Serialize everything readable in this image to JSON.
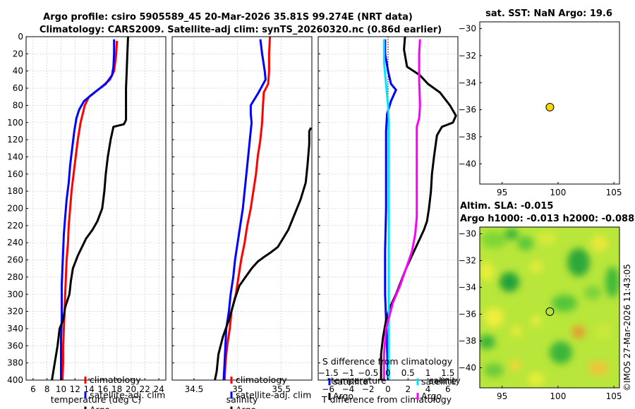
{
  "figure": {
    "title_line1": "Argo profile: csiro 5905589_45 20-Mar-2026 35.81S 99.274E (NRT data)",
    "title_line2": "Climatology: CARS2009. Satellite-adj clim: synTS_20260320.nc (0.86d earlier)",
    "timestamp": "©IMOS 27-Mar-2026 11:43:05"
  },
  "colors": {
    "climatology": "#ff0000",
    "satellite": "#0000ff",
    "argo": "#000000",
    "sat_t": "#00e5ff",
    "sal_m": "#ff00ff",
    "marker": "#ffd700"
  },
  "chart_data": [
    {
      "id": "temperature",
      "type": "line",
      "xlabel": "temperature (deg C)",
      "ylabel": "",
      "xlim": [
        5,
        25
      ],
      "ylim": [
        400,
        0
      ],
      "xticks": [
        6,
        8,
        10,
        12,
        14,
        16,
        18,
        20,
        22,
        24
      ],
      "yticks": [
        0,
        20,
        40,
        60,
        80,
        100,
        120,
        140,
        160,
        180,
        200,
        220,
        240,
        260,
        280,
        300,
        320,
        340,
        360,
        380,
        400
      ],
      "legend": [
        "climatology",
        "satellite-adj. clim",
        "Argo"
      ],
      "series": [
        {
          "name": "climatology",
          "color": "#ff0000",
          "points": [
            [
              18.0,
              5
            ],
            [
              17.9,
              20
            ],
            [
              17.6,
              40
            ],
            [
              17.0,
              50
            ],
            [
              15.6,
              60
            ],
            [
              14.0,
              70
            ],
            [
              13.4,
              80
            ],
            [
              13.1,
              90
            ],
            [
              12.8,
              100
            ],
            [
              12.4,
              120
            ],
            [
              12.1,
              140
            ],
            [
              11.8,
              160
            ],
            [
              11.5,
              180
            ],
            [
              11.3,
              200
            ],
            [
              11.1,
              220
            ],
            [
              11.0,
              240
            ],
            [
              10.8,
              260
            ],
            [
              10.7,
              280
            ],
            [
              10.6,
              300
            ],
            [
              10.5,
              320
            ],
            [
              10.4,
              340
            ],
            [
              10.3,
              360
            ],
            [
              10.3,
              380
            ],
            [
              10.2,
              400
            ]
          ]
        },
        {
          "name": "satellite-adj. clim",
          "color": "#0000ff",
          "points": [
            [
              17.6,
              3
            ],
            [
              17.6,
              20
            ],
            [
              17.5,
              35
            ],
            [
              17.3,
              45
            ],
            [
              16.4,
              55
            ],
            [
              14.8,
              65
            ],
            [
              13.3,
              75
            ],
            [
              12.6,
              85
            ],
            [
              12.2,
              95
            ],
            [
              11.9,
              110
            ],
            [
              11.6,
              130
            ],
            [
              11.3,
              150
            ],
            [
              11.1,
              170
            ],
            [
              10.8,
              190
            ],
            [
              10.6,
              210
            ],
            [
              10.4,
              230
            ],
            [
              10.3,
              250
            ],
            [
              10.2,
              270
            ],
            [
              10.1,
              290
            ],
            [
              10.1,
              310
            ],
            [
              10.1,
              330
            ],
            [
              10.0,
              350
            ],
            [
              10.0,
              370
            ],
            [
              10.0,
              390
            ],
            [
              10.0,
              400
            ]
          ]
        },
        {
          "name": "Argo",
          "color": "#000000",
          "points": [
            [
              19.6,
              0
            ],
            [
              19.5,
              20
            ],
            [
              19.4,
              40
            ],
            [
              19.3,
              60
            ],
            [
              19.3,
              80
            ],
            [
              19.3,
              97
            ],
            [
              19.0,
              102
            ],
            [
              17.5,
              105
            ],
            [
              17.1,
              120
            ],
            [
              16.7,
              140
            ],
            [
              16.4,
              160
            ],
            [
              16.2,
              180
            ],
            [
              15.9,
              200
            ],
            [
              15.2,
              215
            ],
            [
              14.5,
              225
            ],
            [
              13.6,
              235
            ],
            [
              13.0,
              245
            ],
            [
              12.4,
              255
            ],
            [
              11.7,
              270
            ],
            [
              11.4,
              285
            ],
            [
              11.2,
              300
            ],
            [
              10.6,
              315
            ],
            [
              10.3,
              330
            ],
            [
              9.8,
              340
            ],
            [
              9.5,
              360
            ],
            [
              9.2,
              375
            ],
            [
              8.9,
              390
            ],
            [
              8.7,
              400
            ]
          ]
        }
      ]
    },
    {
      "id": "salinity",
      "type": "line",
      "xlabel": "salinity",
      "ylabel": "",
      "xlim": [
        34.25,
        35.85
      ],
      "ylim": [
        400,
        0
      ],
      "xticks": [
        34.5,
        35,
        35.5
      ],
      "legend": [
        "climatology",
        "satellite-adj. clim",
        "Argo"
      ],
      "series": [
        {
          "name": "climatology",
          "color": "#ff0000",
          "points": [
            [
              35.37,
              0
            ],
            [
              35.36,
              20
            ],
            [
              35.36,
              40
            ],
            [
              35.35,
              55
            ],
            [
              35.3,
              65
            ],
            [
              35.29,
              80
            ],
            [
              35.28,
              100
            ],
            [
              35.26,
              120
            ],
            [
              35.23,
              140
            ],
            [
              35.21,
              160
            ],
            [
              35.18,
              180
            ],
            [
              35.15,
              200
            ],
            [
              35.11,
              220
            ],
            [
              35.08,
              240
            ],
            [
              35.04,
              260
            ],
            [
              35.01,
              280
            ],
            [
              34.98,
              300
            ],
            [
              34.93,
              320
            ],
            [
              34.91,
              340
            ],
            [
              34.88,
              360
            ],
            [
              34.86,
              380
            ],
            [
              34.85,
              400
            ]
          ]
        },
        {
          "name": "satellite-adj. clim",
          "color": "#0000ff",
          "points": [
            [
              35.26,
              3
            ],
            [
              35.28,
              20
            ],
            [
              35.31,
              40
            ],
            [
              35.32,
              50
            ],
            [
              35.24,
              65
            ],
            [
              35.15,
              80
            ],
            [
              35.15,
              90
            ],
            [
              35.16,
              100
            ],
            [
              35.14,
              120
            ],
            [
              35.12,
              140
            ],
            [
              35.1,
              160
            ],
            [
              35.08,
              180
            ],
            [
              35.06,
              200
            ],
            [
              35.03,
              220
            ],
            [
              35.0,
              240
            ],
            [
              34.97,
              260
            ],
            [
              34.95,
              280
            ],
            [
              34.92,
              300
            ],
            [
              34.9,
              320
            ],
            [
              34.87,
              340
            ],
            [
              34.86,
              360
            ],
            [
              34.85,
              380
            ],
            [
              34.84,
              400
            ]
          ]
        },
        {
          "name": "Argo",
          "color": "#000000",
          "points": [
            [
              35.84,
              106
            ],
            [
              35.82,
              110
            ],
            [
              35.82,
              125
            ],
            [
              35.8,
              150
            ],
            [
              35.78,
              170
            ],
            [
              35.72,
              190
            ],
            [
              35.64,
              210
            ],
            [
              35.58,
              225
            ],
            [
              35.52,
              235
            ],
            [
              35.46,
              245
            ],
            [
              35.37,
              252
            ],
            [
              35.31,
              256
            ],
            [
              35.23,
              262
            ],
            [
              35.16,
              270
            ],
            [
              35.09,
              280
            ],
            [
              35.02,
              290
            ],
            [
              34.97,
              305
            ],
            [
              34.9,
              330
            ],
            [
              34.83,
              350
            ],
            [
              34.78,
              370
            ],
            [
              34.76,
              390
            ],
            [
              34.74,
              400
            ]
          ]
        }
      ]
    },
    {
      "id": "difference",
      "type": "line",
      "xlabel": "T difference from climatology",
      "x2label": "S difference from climatology",
      "xlim": [
        -7,
        7
      ],
      "ylim": [
        400,
        0
      ],
      "xticks": [
        -6,
        -4,
        -2,
        0,
        2,
        4,
        6
      ],
      "x2ticks": [
        -1.5,
        -1,
        -0.5,
        0,
        0.5,
        1,
        1.5
      ],
      "x2lim": [
        -1.75,
        1.75
      ],
      "legend_left_title": "temperature",
      "legend_right_title": "salinity",
      "legend": [
        "satellite",
        "Argo",
        "satellite",
        "Argo"
      ],
      "series": [
        {
          "name": "T satellite",
          "axis": "T",
          "color": "#0000ff",
          "points": [
            [
              -0.3,
              3
            ],
            [
              -0.3,
              20
            ],
            [
              0,
              40
            ],
            [
              0.3,
              55
            ],
            [
              0.8,
              62
            ],
            [
              0.3,
              75
            ],
            [
              -0.1,
              90
            ],
            [
              -0.2,
              110
            ],
            [
              -0.2,
              150
            ],
            [
              -0.2,
              200
            ],
            [
              -0.3,
              250
            ],
            [
              -0.3,
              300
            ],
            [
              -0.2,
              330
            ],
            [
              -0.1,
              360
            ],
            [
              0,
              400
            ]
          ]
        },
        {
          "name": "T Argo",
          "axis": "T",
          "color": "#000000",
          "points": [
            [
              1.7,
              0
            ],
            [
              1.6,
              15
            ],
            [
              1.9,
              35
            ],
            [
              3.2,
              45
            ],
            [
              4.0,
              55
            ],
            [
              5.2,
              65
            ],
            [
              6.2,
              80
            ],
            [
              6.8,
              92
            ],
            [
              6.5,
              100
            ],
            [
              5.4,
              105
            ],
            [
              4.9,
              115
            ],
            [
              4.6,
              140
            ],
            [
              4.4,
              160
            ],
            [
              4.3,
              180
            ],
            [
              4.1,
              200
            ],
            [
              3.9,
              215
            ],
            [
              3.6,
              225
            ],
            [
              3.0,
              240
            ],
            [
              2.4,
              255
            ],
            [
              1.8,
              270
            ],
            [
              1.3,
              285
            ],
            [
              0.8,
              300
            ],
            [
              0.2,
              315
            ],
            [
              -0.2,
              330
            ],
            [
              -0.5,
              350
            ],
            [
              -0.7,
              370
            ],
            [
              -0.7,
              400
            ]
          ]
        },
        {
          "name": "S satellite",
          "axis": "S",
          "color": "#00e5ff",
          "points": [
            [
              -0.1,
              3
            ],
            [
              -0.1,
              30
            ],
            [
              -0.04,
              60
            ],
            [
              0,
              80
            ],
            [
              0.02,
              100
            ],
            [
              0.02,
              150
            ],
            [
              0.02,
              200
            ],
            [
              0.02,
              300
            ],
            [
              0.02,
              400
            ]
          ]
        },
        {
          "name": "S Argo",
          "axis": "S",
          "color": "#ff00ff",
          "points": [
            [
              0.8,
              3
            ],
            [
              0.78,
              20
            ],
            [
              0.78,
              50
            ],
            [
              0.8,
              80
            ],
            [
              0.78,
              95
            ],
            [
              0.72,
              105
            ],
            [
              0.72,
              130
            ],
            [
              0.72,
              150
            ],
            [
              0.72,
              180
            ],
            [
              0.72,
              210
            ],
            [
              0.68,
              230
            ],
            [
              0.6,
              250
            ],
            [
              0.45,
              270
            ],
            [
              0.3,
              290
            ],
            [
              0.12,
              310
            ],
            [
              -0.05,
              340
            ],
            [
              -0.1,
              370
            ],
            [
              -0.1,
              400
            ]
          ]
        }
      ]
    },
    {
      "id": "map_sst",
      "type": "scatter",
      "title": "sat. SST: NaN Argo: 19.6",
      "xlim": [
        93,
        105.5
      ],
      "ylim": [
        -41.5,
        -29.5
      ],
      "xticks": [
        95,
        100,
        105
      ],
      "yticks": [
        -30,
        -32,
        -34,
        -36,
        -38,
        -40
      ],
      "points": [
        {
          "x": 99.274,
          "y": -35.81,
          "color": "#ffd700"
        }
      ]
    },
    {
      "id": "map_sla",
      "type": "heatmap",
      "title_line1": "Altim. SLA: -0.015",
      "title_line2": "Argo h1000: -0.013 h2000: -0.088",
      "xlim": [
        93,
        105.5
      ],
      "ylim": [
        -41.5,
        -29.5
      ],
      "xticks": [
        95,
        100,
        105
      ],
      "yticks": [
        -30,
        -32,
        -34,
        -36,
        -38,
        -40
      ],
      "points": [
        {
          "x": 99.274,
          "y": -35.81
        }
      ]
    }
  ]
}
